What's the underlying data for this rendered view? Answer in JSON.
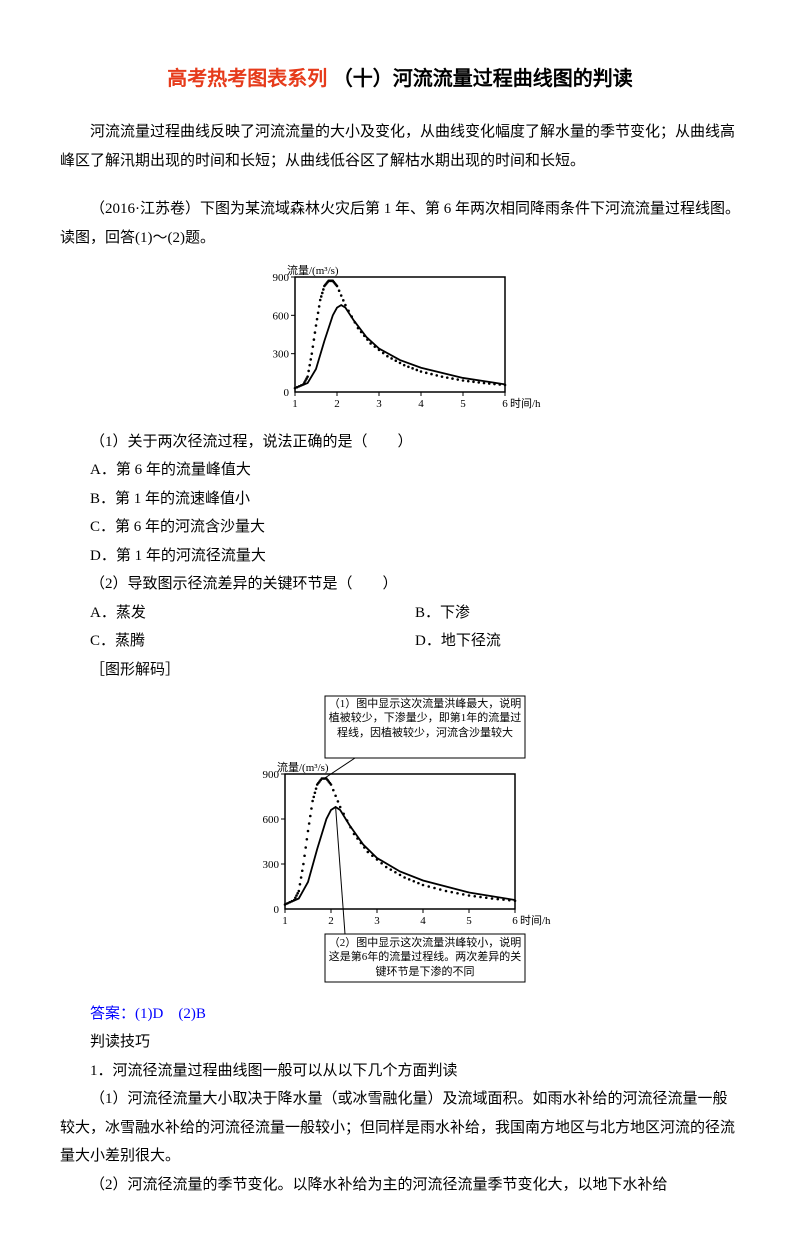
{
  "title_prefix": "高考热考图表系列",
  "title_red_color": "#e63b1b",
  "title_suffix": " （十）河流流量过程曲线图的判读",
  "intro": "河流流量过程曲线反映了河流流量的大小及变化，从曲线变化幅度了解水量的季节变化；从曲线高峰区了解汛期出现的时间和长短；从曲线低谷区了解枯水期出现的时间和长短。",
  "stem": "（2016·江苏卷）下图为某流域森林火灾后第 1 年、第 6 年两次相同降雨条件下河流流量过程线图。读图，回答(1)～(2)题。",
  "chart": {
    "ylabel": "流量/(m³/s)",
    "xlabel": "时间/h",
    "yticks": [
      0,
      300,
      600,
      900
    ],
    "xticks": [
      1,
      2,
      3,
      4,
      5,
      6
    ],
    "frame_color": "#000000",
    "bg_color": "#ffffff",
    "series": {
      "year1": {
        "style": "dotted",
        "color": "#000000",
        "data": [
          [
            1.0,
            30
          ],
          [
            1.2,
            60
          ],
          [
            1.3,
            120
          ],
          [
            1.4,
            300
          ],
          [
            1.5,
            520
          ],
          [
            1.6,
            720
          ],
          [
            1.7,
            830
          ],
          [
            1.8,
            870
          ],
          [
            1.9,
            870
          ],
          [
            2.0,
            830
          ],
          [
            2.2,
            680
          ],
          [
            2.5,
            500
          ],
          [
            2.8,
            380
          ],
          [
            3.2,
            280
          ],
          [
            3.6,
            210
          ],
          [
            4.0,
            160
          ],
          [
            4.5,
            120
          ],
          [
            5.0,
            90
          ],
          [
            5.5,
            70
          ],
          [
            6.0,
            55
          ]
        ]
      },
      "year6": {
        "style": "solid",
        "color": "#000000",
        "data": [
          [
            1.0,
            30
          ],
          [
            1.3,
            70
          ],
          [
            1.5,
            180
          ],
          [
            1.7,
            400
          ],
          [
            1.9,
            600
          ],
          [
            2.0,
            660
          ],
          [
            2.1,
            680
          ],
          [
            2.2,
            660
          ],
          [
            2.4,
            560
          ],
          [
            2.7,
            430
          ],
          [
            3.0,
            340
          ],
          [
            3.5,
            250
          ],
          [
            4.0,
            190
          ],
          [
            4.5,
            150
          ],
          [
            5.0,
            110
          ],
          [
            5.5,
            85
          ],
          [
            6.0,
            60
          ]
        ]
      }
    }
  },
  "q1": {
    "stem": "（1）关于两次径流过程，说法正确的是（　　）",
    "A": "A．第 6 年的流量峰值大",
    "B": "B．第 1 年的流速峰值小",
    "C": "C．第 6 年的河流含沙量大",
    "D": "D．第 1 年的河流径流量大"
  },
  "q2": {
    "stem": "（2）导致图示径流差异的关键环节是（　　）",
    "A": "A．蒸发",
    "B": "B．下渗",
    "C": "C．蒸腾",
    "D": "D．地下径流"
  },
  "decode_label": "［图形解码］",
  "callout1": "（1）图中显示这次流量洪峰最大，说明植被较少，下渗量少，即第1年的流量过程线，因植被较少，河流含沙量较大",
  "callout2": "（2）图中显示这次流量洪峰较小，说明这是第6年的流量过程线。两次差异的关键环节是下渗的不同",
  "answer_label": "答案：",
  "answer_text": "(1)D　(2)B",
  "tips_label": "判读技巧",
  "tips_heading": "1．河流径流量过程曲线图一般可以从以下几个方面判读",
  "tip1": "（1）河流径流量大小取决于降水量（或冰雪融化量）及流域面积。如雨水补给的河流径流量一般较大，冰雪融水补给的河流径流量一般较小；但同样是雨水补给，我国南方地区与北方地区河流的径流量大小差别很大。",
  "tip2": "（2）河流径流量的季节变化。以降水补给为主的河流径流量季节变化大，以地下水补给"
}
